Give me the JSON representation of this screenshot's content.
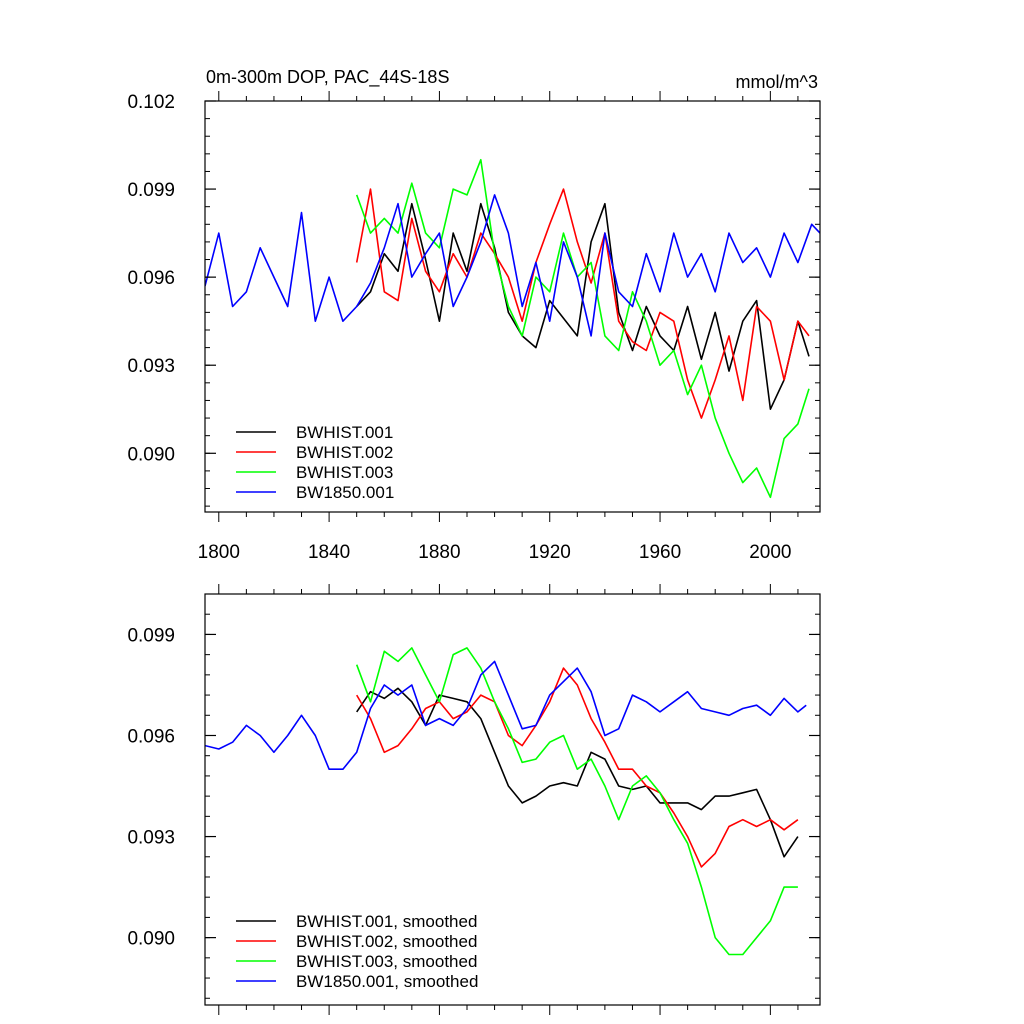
{
  "chart_data": [
    {
      "type": "line",
      "title": "0m-300m DOP, PAC_44S-18S",
      "units": "mmol/m^3",
      "xlabel": "",
      "ylabel": "",
      "xlim": [
        1795,
        2018
      ],
      "ylim": [
        0.088,
        0.102
      ],
      "xticks": [
        1800,
        1840,
        1880,
        1920,
        1960,
        2000
      ],
      "xtick_labels": [
        "1800",
        "1840",
        "1880",
        "1920",
        "1960",
        "2000"
      ],
      "yticks": [
        0.09,
        0.093,
        0.096,
        0.099,
        0.102
      ],
      "ytick_labels": [
        "0.090",
        "0.093",
        "0.096",
        "0.099",
        "0.102"
      ],
      "grid": false,
      "legend_position": "bottom-left",
      "series": [
        {
          "name": "BWHIST.001",
          "color": "#000000",
          "x": [
            1850,
            1855,
            1860,
            1865,
            1870,
            1875,
            1880,
            1885,
            1890,
            1895,
            1900,
            1905,
            1910,
            1915,
            1920,
            1925,
            1930,
            1935,
            1940,
            1945,
            1950,
            1955,
            1960,
            1965,
            1970,
            1975,
            1980,
            1985,
            1990,
            1995,
            2000,
            2005,
            2010,
            2014
          ],
          "y": [
            0.095,
            0.0955,
            0.0968,
            0.0962,
            0.0985,
            0.0966,
            0.0945,
            0.0975,
            0.0962,
            0.0985,
            0.097,
            0.0948,
            0.094,
            0.0936,
            0.0952,
            0.0946,
            0.094,
            0.0972,
            0.0985,
            0.0948,
            0.0935,
            0.095,
            0.094,
            0.0935,
            0.095,
            0.0932,
            0.0948,
            0.0928,
            0.0945,
            0.0952,
            0.0915,
            0.0925,
            0.0945,
            0.0933
          ]
        },
        {
          "name": "BWHIST.002",
          "color": "#ff0000",
          "x": [
            1850,
            1855,
            1860,
            1865,
            1870,
            1875,
            1880,
            1885,
            1890,
            1895,
            1900,
            1905,
            1910,
            1915,
            1920,
            1925,
            1930,
            1935,
            1940,
            1945,
            1950,
            1955,
            1960,
            1965,
            1970,
            1975,
            1980,
            1985,
            1990,
            1995,
            2000,
            2005,
            2010,
            2014
          ],
          "y": [
            0.0965,
            0.099,
            0.0955,
            0.0952,
            0.098,
            0.0962,
            0.0955,
            0.0968,
            0.096,
            0.0975,
            0.0968,
            0.096,
            0.0945,
            0.0965,
            0.0978,
            0.099,
            0.0972,
            0.0958,
            0.0975,
            0.0945,
            0.0938,
            0.0935,
            0.0948,
            0.0945,
            0.0925,
            0.0912,
            0.0925,
            0.094,
            0.0918,
            0.095,
            0.0945,
            0.0925,
            0.0945,
            0.094
          ]
        },
        {
          "name": "BWHIST.003",
          "color": "#00ff00",
          "x": [
            1850,
            1855,
            1860,
            1865,
            1870,
            1875,
            1880,
            1885,
            1890,
            1895,
            1900,
            1905,
            1910,
            1915,
            1920,
            1925,
            1930,
            1935,
            1940,
            1945,
            1950,
            1955,
            1960,
            1965,
            1970,
            1975,
            1980,
            1985,
            1990,
            1995,
            2000,
            2005,
            2010,
            2014
          ],
          "y": [
            0.0988,
            0.0975,
            0.098,
            0.0975,
            0.0992,
            0.0975,
            0.097,
            0.099,
            0.0988,
            0.1,
            0.0968,
            0.095,
            0.094,
            0.096,
            0.0955,
            0.0975,
            0.096,
            0.0965,
            0.094,
            0.0935,
            0.0955,
            0.0945,
            0.093,
            0.0935,
            0.092,
            0.093,
            0.0912,
            0.09,
            0.089,
            0.0895,
            0.0885,
            0.0905,
            0.091,
            0.0922
          ]
        },
        {
          "name": "BW1850.001",
          "color": "#0000ff",
          "x": [
            1795,
            1800,
            1805,
            1810,
            1815,
            1820,
            1825,
            1830,
            1835,
            1840,
            1845,
            1850,
            1855,
            1860,
            1865,
            1870,
            1875,
            1880,
            1885,
            1890,
            1895,
            1900,
            1905,
            1910,
            1915,
            1920,
            1925,
            1930,
            1935,
            1940,
            1945,
            1950,
            1955,
            1960,
            1965,
            1970,
            1975,
            1980,
            1985,
            1990,
            1995,
            2000,
            2005,
            2010,
            2015,
            2018
          ],
          "y": [
            0.0957,
            0.0975,
            0.095,
            0.0955,
            0.097,
            0.096,
            0.095,
            0.0982,
            0.0945,
            0.096,
            0.0945,
            0.095,
            0.0958,
            0.097,
            0.0985,
            0.096,
            0.0968,
            0.0975,
            0.095,
            0.096,
            0.0972,
            0.0988,
            0.0975,
            0.095,
            0.0965,
            0.0945,
            0.0972,
            0.096,
            0.094,
            0.0975,
            0.0955,
            0.095,
            0.0968,
            0.0955,
            0.0975,
            0.096,
            0.0968,
            0.0955,
            0.0975,
            0.0965,
            0.097,
            0.096,
            0.0975,
            0.0965,
            0.0978,
            0.0975
          ]
        }
      ]
    },
    {
      "type": "line",
      "title": "",
      "xlabel": "",
      "ylabel": "",
      "xlim": [
        1795,
        2018
      ],
      "ylim": [
        0.088,
        0.1002
      ],
      "xticks": [
        1800,
        1840,
        1880,
        1920,
        1960,
        2000
      ],
      "xtick_labels": [],
      "yticks": [
        0.09,
        0.093,
        0.096,
        0.099
      ],
      "ytick_labels": [
        "0.090",
        "0.093",
        "0.096",
        "0.099"
      ],
      "grid": false,
      "legend_position": "bottom-left",
      "series": [
        {
          "name": "BWHIST.001, smoothed",
          "color": "#000000",
          "x": [
            1850,
            1855,
            1860,
            1865,
            1870,
            1875,
            1880,
            1885,
            1890,
            1895,
            1900,
            1905,
            1910,
            1915,
            1920,
            1925,
            1930,
            1935,
            1940,
            1945,
            1950,
            1955,
            1960,
            1965,
            1970,
            1975,
            1980,
            1985,
            1990,
            1995,
            2000,
            2005,
            2010
          ],
          "y": [
            0.0967,
            0.0973,
            0.0971,
            0.0974,
            0.097,
            0.0963,
            0.0972,
            0.0971,
            0.097,
            0.0965,
            0.0955,
            0.0945,
            0.094,
            0.0942,
            0.0945,
            0.0946,
            0.0945,
            0.0955,
            0.0953,
            0.0945,
            0.0944,
            0.0945,
            0.094,
            0.094,
            0.094,
            0.0938,
            0.0942,
            0.0942,
            0.0943,
            0.0944,
            0.0935,
            0.0924,
            0.093
          ]
        },
        {
          "name": "BWHIST.002, smoothed",
          "color": "#ff0000",
          "x": [
            1850,
            1855,
            1860,
            1865,
            1870,
            1875,
            1880,
            1885,
            1890,
            1895,
            1900,
            1905,
            1910,
            1915,
            1920,
            1925,
            1930,
            1935,
            1940,
            1945,
            1950,
            1955,
            1960,
            1965,
            1970,
            1975,
            1980,
            1985,
            1990,
            1995,
            2000,
            2005,
            2010
          ],
          "y": [
            0.0972,
            0.0965,
            0.0955,
            0.0957,
            0.0962,
            0.0968,
            0.097,
            0.0965,
            0.0967,
            0.0972,
            0.097,
            0.096,
            0.0957,
            0.0963,
            0.097,
            0.098,
            0.0975,
            0.0965,
            0.0958,
            0.095,
            0.095,
            0.0945,
            0.0943,
            0.0937,
            0.093,
            0.0921,
            0.0925,
            0.0933,
            0.0935,
            0.0933,
            0.0935,
            0.0932,
            0.0935
          ]
        },
        {
          "name": "BWHIST.003, smoothed",
          "color": "#00ff00",
          "x": [
            1850,
            1855,
            1860,
            1865,
            1870,
            1875,
            1880,
            1885,
            1890,
            1895,
            1900,
            1905,
            1910,
            1915,
            1920,
            1925,
            1930,
            1935,
            1940,
            1945,
            1950,
            1955,
            1960,
            1965,
            1970,
            1975,
            1980,
            1985,
            1990,
            1995,
            2000,
            2005,
            2010
          ],
          "y": [
            0.0981,
            0.097,
            0.0985,
            0.0982,
            0.0986,
            0.0978,
            0.097,
            0.0984,
            0.0986,
            0.098,
            0.097,
            0.0962,
            0.0952,
            0.0953,
            0.0958,
            0.096,
            0.095,
            0.0953,
            0.0945,
            0.0935,
            0.0945,
            0.0948,
            0.0943,
            0.0935,
            0.0928,
            0.0915,
            0.09,
            0.0895,
            0.0895,
            0.09,
            0.0905,
            0.0915,
            0.0915
          ]
        },
        {
          "name": "BW1850.001, smoothed",
          "color": "#0000ff",
          "x": [
            1795,
            1800,
            1805,
            1810,
            1815,
            1820,
            1825,
            1830,
            1835,
            1840,
            1845,
            1850,
            1855,
            1860,
            1865,
            1870,
            1875,
            1880,
            1885,
            1890,
            1895,
            1900,
            1905,
            1910,
            1915,
            1920,
            1925,
            1930,
            1935,
            1940,
            1945,
            1950,
            1955,
            1960,
            1965,
            1970,
            1975,
            1980,
            1985,
            1990,
            1995,
            2000,
            2005,
            2010,
            2013
          ],
          "y": [
            0.0957,
            0.0956,
            0.0958,
            0.0963,
            0.096,
            0.0955,
            0.096,
            0.0966,
            0.096,
            0.095,
            0.095,
            0.0955,
            0.0968,
            0.0975,
            0.0972,
            0.0975,
            0.0963,
            0.0965,
            0.0963,
            0.0968,
            0.0978,
            0.0982,
            0.0972,
            0.0962,
            0.0963,
            0.0972,
            0.0976,
            0.098,
            0.0973,
            0.096,
            0.0962,
            0.0972,
            0.097,
            0.0967,
            0.097,
            0.0973,
            0.0968,
            0.0967,
            0.0966,
            0.0968,
            0.0969,
            0.0966,
            0.0971,
            0.0967,
            0.0969
          ]
        }
      ]
    }
  ]
}
